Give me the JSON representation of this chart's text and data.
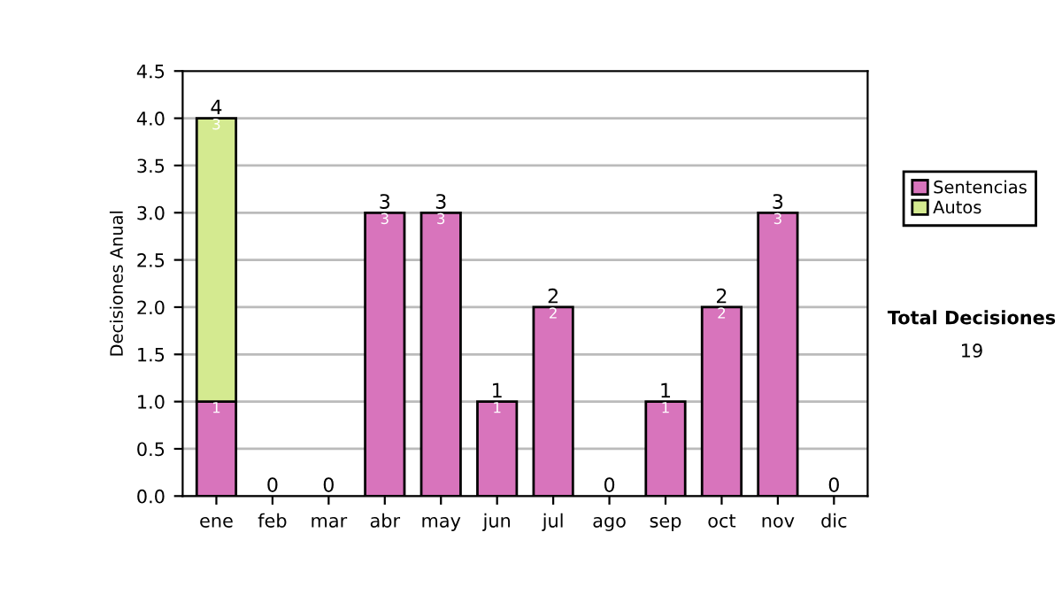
{
  "chart_data": {
    "type": "bar",
    "stacked": true,
    "ylabel": "Decisiones Anual",
    "categories": [
      "ene",
      "feb",
      "mar",
      "abr",
      "may",
      "jun",
      "jul",
      "ago",
      "sep",
      "oct",
      "nov",
      "dic"
    ],
    "series": [
      {
        "name": "Sentencias",
        "color": "#d874bc",
        "values": [
          1,
          0,
          0,
          3,
          3,
          1,
          2,
          0,
          1,
          2,
          3,
          0
        ],
        "value_labels": [
          "1",
          null,
          null,
          "3",
          "3",
          "1",
          "2",
          null,
          "1",
          "2",
          "3",
          null
        ]
      },
      {
        "name": "Autos",
        "color": "#d4ea90",
        "values": [
          3,
          0,
          0,
          0,
          0,
          0,
          0,
          0,
          0,
          0,
          0,
          0
        ],
        "value_labels": [
          "3",
          null,
          null,
          null,
          null,
          null,
          null,
          null,
          null,
          null,
          null,
          null
        ]
      }
    ],
    "totals": [
      "4",
      "0",
      "0",
      "3",
      "3",
      "1",
      "2",
      "0",
      "1",
      "2",
      "3",
      "0"
    ],
    "ylim": [
      0,
      4.5
    ],
    "yticks": [
      {
        "value": 0,
        "label": "0.0"
      },
      {
        "value": 0.5,
        "label": "0.5"
      },
      {
        "value": 1,
        "label": "1.0"
      },
      {
        "value": 1.5,
        "label": "1.5"
      },
      {
        "value": 2,
        "label": "2.0"
      },
      {
        "value": 2.5,
        "label": "2.5"
      },
      {
        "value": 3,
        "label": "3.0"
      },
      {
        "value": 3.5,
        "label": "3.5"
      },
      {
        "value": 4,
        "label": "4.0"
      },
      {
        "value": 4.5,
        "label": "4.5"
      }
    ],
    "grid": "y",
    "legend": "right",
    "annotations": [
      "Total Decisiones",
      "19"
    ]
  }
}
